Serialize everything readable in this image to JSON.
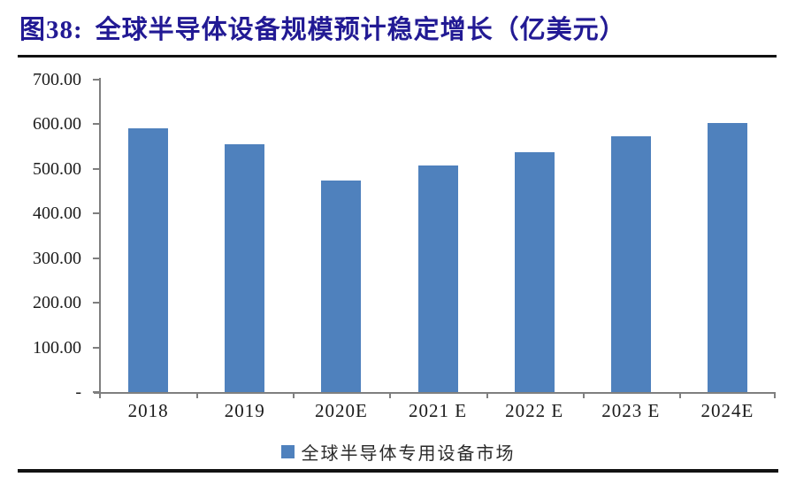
{
  "header": {
    "figure_no": "图38:",
    "title": "全球半导体设备规模预计稳定增长（亿美元）"
  },
  "chart_data": {
    "type": "bar",
    "title": "图38: 全球半导体设备规模预计稳定增长（亿美元）",
    "categories": [
      "2018",
      "2019",
      "2020E",
      "2021 E",
      "2022 E",
      "2023 E",
      "2024E"
    ],
    "values": [
      590,
      555,
      473,
      508,
      537,
      573,
      602
    ],
    "series_name": "全球半导体专用设备市场",
    "unit": "亿美元",
    "xlabel": "",
    "ylabel": "",
    "ylim": [
      0,
      700
    ],
    "ytick_step": 100,
    "ytick_labels": [
      "-",
      "100.00",
      "200.00",
      "300.00",
      "400.00",
      "500.00",
      "600.00",
      "700.00"
    ],
    "grid": false,
    "legend_position": "bottom"
  },
  "colors": {
    "bar": "#4f81bd",
    "title": "#221a94",
    "axis": "#7f7f7f",
    "rule": "#121212",
    "tick": "#7f7f7f"
  }
}
